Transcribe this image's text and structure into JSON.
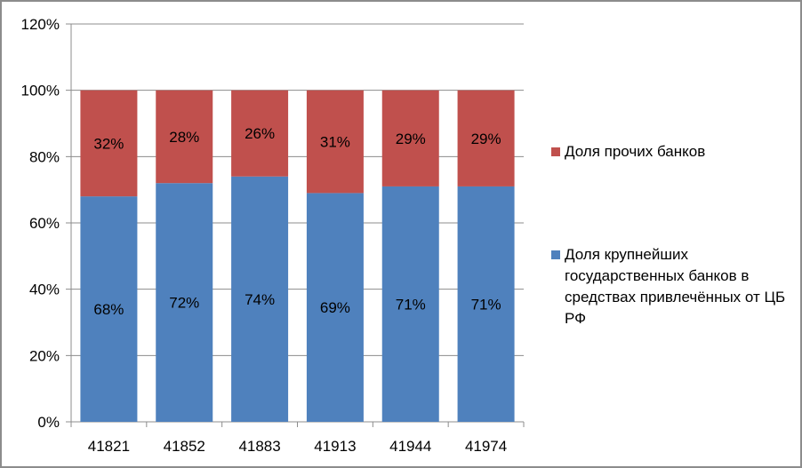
{
  "chart_data": {
    "type": "bar",
    "stacked": true,
    "categories": [
      "41821",
      "41852",
      "41883",
      "41913",
      "41944",
      "41974"
    ],
    "series": [
      {
        "name": "Доля крупнейших государственных банков в средствах привлечённых от ЦБ РФ",
        "values": [
          68,
          72,
          74,
          69,
          71,
          71
        ],
        "labels": [
          "68%",
          "72%",
          "74%",
          "69%",
          "71%",
          "71%"
        ],
        "color": "#4f81bd"
      },
      {
        "name": "Доля прочих банков",
        "values": [
          32,
          28,
          26,
          31,
          29,
          29
        ],
        "labels": [
          "32%",
          "28%",
          "26%",
          "31%",
          "29%",
          "29%"
        ],
        "color": "#c0504d"
      }
    ],
    "ylim": [
      0,
      120
    ],
    "yticks": [
      "0%",
      "20%",
      "40%",
      "60%",
      "80%",
      "100%",
      "120%"
    ],
    "grid": true,
    "legend_position": "right"
  }
}
